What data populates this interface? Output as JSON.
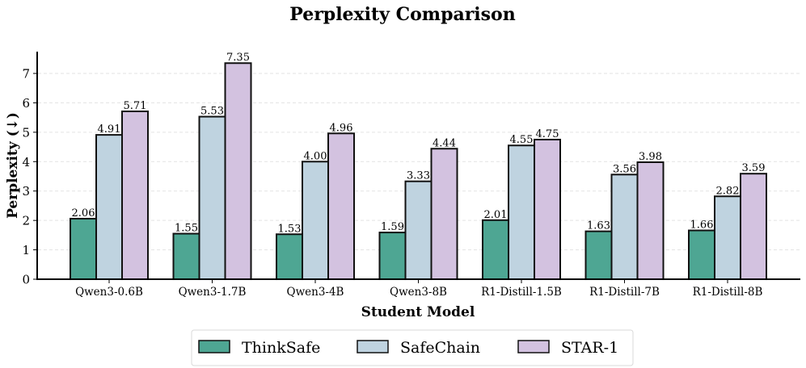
{
  "chart_data": {
    "type": "bar",
    "title": "Perplexity Comparison",
    "xlabel": "Student Model",
    "ylabel": "Perplexity (↓)",
    "ylim": [
      0,
      7.7
    ],
    "yticks": [
      0,
      1,
      2,
      3,
      4,
      5,
      6,
      7
    ],
    "grid": "y-dashed",
    "legend_position": "bottom-center",
    "categories": [
      "Qwen3-0.6B",
      "Qwen3-1.7B",
      "Qwen3-4B",
      "Qwen3-8B",
      "R1-Distill-1.5B",
      "R1-Distill-7B",
      "R1-Distill-8B"
    ],
    "series": [
      {
        "name": "ThinkSafe",
        "color": "#4ea693",
        "values": [
          2.06,
          1.55,
          1.53,
          1.59,
          2.01,
          1.63,
          1.66
        ]
      },
      {
        "name": "SafeChain",
        "color": "#bfd3e0",
        "values": [
          4.91,
          5.53,
          4.0,
          3.33,
          4.55,
          3.56,
          2.82
        ]
      },
      {
        "name": "STAR-1",
        "color": "#d3c2e0",
        "values": [
          5.71,
          7.35,
          4.96,
          4.44,
          4.75,
          3.98,
          3.59
        ]
      }
    ]
  }
}
